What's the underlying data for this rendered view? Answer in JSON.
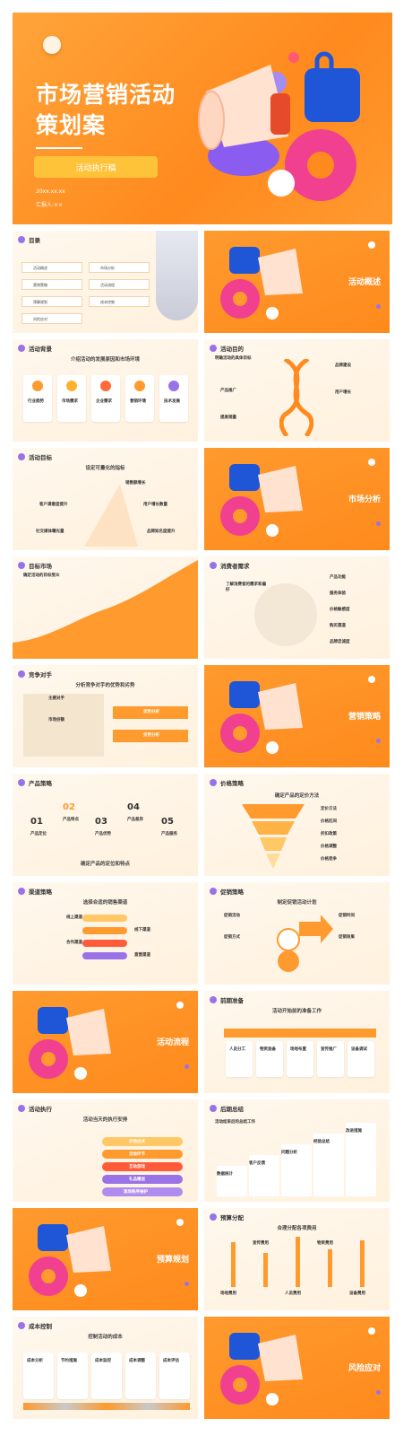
{
  "cover": {
    "title_line1": "市场营销活动",
    "title_line2": "策划案",
    "button": "活动执行稿",
    "date": "20xx.xx.xx",
    "reporter": "汇报人:××"
  },
  "toc": {
    "title": "目录",
    "items": [
      "活动概述",
      "市场分析",
      "营销策略",
      "活动流程",
      "预算规划",
      "成本控制",
      "风险应对"
    ]
  },
  "sections": {
    "overview": "活动概述",
    "market": "市场分析",
    "strategy": "营销策略",
    "process": "活动流程",
    "budget": "预算规划",
    "risk": "风险应对"
  },
  "slides": {
    "background": {
      "title": "活动背景",
      "subtitle": "介绍活动的发展原因和市场环境",
      "cards": [
        "行业趋势",
        "市场需求",
        "企业需求",
        "营销环境",
        "技术发展"
      ]
    },
    "purpose": {
      "title": "活动目的",
      "subtitle": "明确活动的具体目标",
      "labels": [
        "产品推广",
        "提高销量",
        "品牌建设",
        "用户增长"
      ]
    },
    "goals": {
      "title": "活动目标",
      "subtitle": "设定可量化的指标",
      "labels": [
        "销售额增长",
        "客户满意度提升",
        "用户增长数量",
        "社交媒体曝光量",
        "品牌知名度提升"
      ]
    },
    "target": {
      "title": "目标市场",
      "subtitle": "确定活动的目标受众"
    },
    "consumer": {
      "title": "消费者需求",
      "subtitle": "了解消费者的需求和偏好",
      "labels": [
        "产品功能",
        "服务体验",
        "价格敏感度",
        "购买渠道",
        "品牌忠诚度"
      ]
    },
    "competitor": {
      "title": "竞争对手",
      "subtitle": "分析竞争对手的优势和劣势",
      "labels": [
        "主要对手",
        "优势分析",
        "劣势分析",
        "市场份额"
      ]
    },
    "product": {
      "title": "产品策略",
      "subtitle": "确定产品的定位和特点",
      "numbers": [
        "01",
        "02",
        "03",
        "04",
        "05"
      ],
      "labels": [
        "产品定位",
        "产品特点",
        "产品优势",
        "产品差异",
        "产品服务"
      ]
    },
    "price": {
      "title": "价格策略",
      "subtitle": "确定产品的定价方法",
      "labels": [
        "定价方法",
        "价格区间",
        "折扣政策",
        "价格调整",
        "价格竞争"
      ]
    },
    "channel": {
      "title": "渠道策略",
      "subtitle": "选择合适的销售渠道",
      "labels": [
        "线上渠道",
        "线下渠道",
        "合作渠道",
        "直营渠道"
      ]
    },
    "promotion": {
      "title": "促销策略",
      "subtitle": "制定促销活动计划",
      "labels": [
        "促销活动",
        "促销方式",
        "促销时间",
        "促销效果"
      ]
    },
    "prep": {
      "title": "前期准备",
      "subtitle": "活动开始前的准备工作",
      "labels": [
        "人员分工",
        "物资准备",
        "场地布置",
        "宣传推广",
        "设备调试"
      ]
    },
    "execution": {
      "title": "活动执行",
      "subtitle": "活动当天的执行安排",
      "labels": [
        "开场仪式",
        "活动环节",
        "互动游戏",
        "礼品赠送",
        "现场秩序维护"
      ]
    },
    "summary": {
      "title": "后期总结",
      "subtitle": "活动结束后的总结工作",
      "labels": [
        "数据统计",
        "客户反馈",
        "问题分析",
        "经验总结",
        "改进措施"
      ]
    },
    "budget": {
      "title": "预算分配",
      "subtitle": "合理分配各项费用",
      "labels": [
        "场地费用",
        "宣传费用",
        "人员费用",
        "物资费用",
        "设备费用"
      ]
    },
    "cost": {
      "title": "成本控制",
      "subtitle": "控制活动的成本",
      "labels": [
        "成本分析",
        "节约措施",
        "成本监控",
        "成本调整",
        "成本评估"
      ]
    }
  }
}
